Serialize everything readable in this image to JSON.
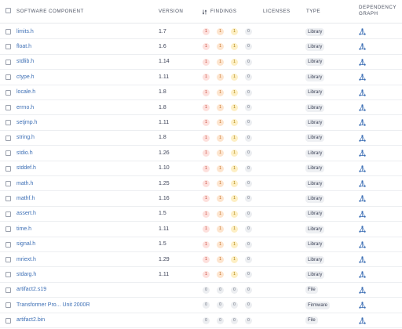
{
  "header": {
    "component": "SOFTWARE COMPONENT",
    "version": "VERSION",
    "findings": "FINDINGS",
    "licenses": "LICENSES",
    "type": "TYPE",
    "dependency": "DEPENDENCY GRAPH"
  },
  "colors": {
    "link": "#3d6fb5",
    "critical": "#c0392b",
    "high": "#c0671a",
    "medium": "#a67a00",
    "neutral": "#6b7280"
  },
  "rows": [
    {
      "name": "limits.h",
      "version": "1.7",
      "findings": [
        "1",
        "1",
        "1",
        "0"
      ],
      "type": "Library"
    },
    {
      "name": "float.h",
      "version": "1.6",
      "findings": [
        "1",
        "1",
        "1",
        "0"
      ],
      "type": "Library"
    },
    {
      "name": "stdlib.h",
      "version": "1.14",
      "findings": [
        "1",
        "1",
        "1",
        "0"
      ],
      "type": "Library"
    },
    {
      "name": "ctype.h",
      "version": "1.11",
      "findings": [
        "1",
        "1",
        "1",
        "0"
      ],
      "type": "Library"
    },
    {
      "name": "locale.h",
      "version": "1.8",
      "findings": [
        "1",
        "1",
        "1",
        "0"
      ],
      "type": "Library"
    },
    {
      "name": "errno.h",
      "version": "1.8",
      "findings": [
        "1",
        "1",
        "1",
        "0"
      ],
      "type": "Library"
    },
    {
      "name": "setjmp.h",
      "version": "1.11",
      "findings": [
        "1",
        "1",
        "1",
        "0"
      ],
      "type": "Library"
    },
    {
      "name": "string.h",
      "version": "1.8",
      "findings": [
        "1",
        "1",
        "1",
        "0"
      ],
      "type": "Library"
    },
    {
      "name": "stdio.h",
      "version": "1.26",
      "findings": [
        "1",
        "1",
        "1",
        "0"
      ],
      "type": "Library"
    },
    {
      "name": "stddef.h",
      "version": "1.10",
      "findings": [
        "1",
        "1",
        "1",
        "0"
      ],
      "type": "Library"
    },
    {
      "name": "math.h",
      "version": "1.25",
      "findings": [
        "1",
        "1",
        "1",
        "0"
      ],
      "type": "Library"
    },
    {
      "name": "mathf.h",
      "version": "1.16",
      "findings": [
        "1",
        "1",
        "1",
        "0"
      ],
      "type": "Library"
    },
    {
      "name": "assert.h",
      "version": "1.5",
      "findings": [
        "1",
        "1",
        "1",
        "0"
      ],
      "type": "Library"
    },
    {
      "name": "time.h",
      "version": "1.11",
      "findings": [
        "1",
        "1",
        "1",
        "0"
      ],
      "type": "Library"
    },
    {
      "name": "signal.h",
      "version": "1.5",
      "findings": [
        "1",
        "1",
        "1",
        "0"
      ],
      "type": "Library"
    },
    {
      "name": "mriext.h",
      "version": "1.29",
      "findings": [
        "1",
        "1",
        "1",
        "0"
      ],
      "type": "Library"
    },
    {
      "name": "stdarg.h",
      "version": "1.11",
      "findings": [
        "1",
        "1",
        "1",
        "0"
      ],
      "type": "Library"
    },
    {
      "name": "artifact2.s19",
      "version": "",
      "findings": [
        "0",
        "0",
        "0",
        "0"
      ],
      "type": "File"
    },
    {
      "name": "Transformer Pro... Unit 2000R",
      "version": "",
      "findings": [
        "0",
        "0",
        "0",
        "0"
      ],
      "type": "Firmware"
    },
    {
      "name": "artifact2.bin",
      "version": "",
      "findings": [
        "0",
        "0",
        "0",
        "0"
      ],
      "type": "File"
    }
  ]
}
